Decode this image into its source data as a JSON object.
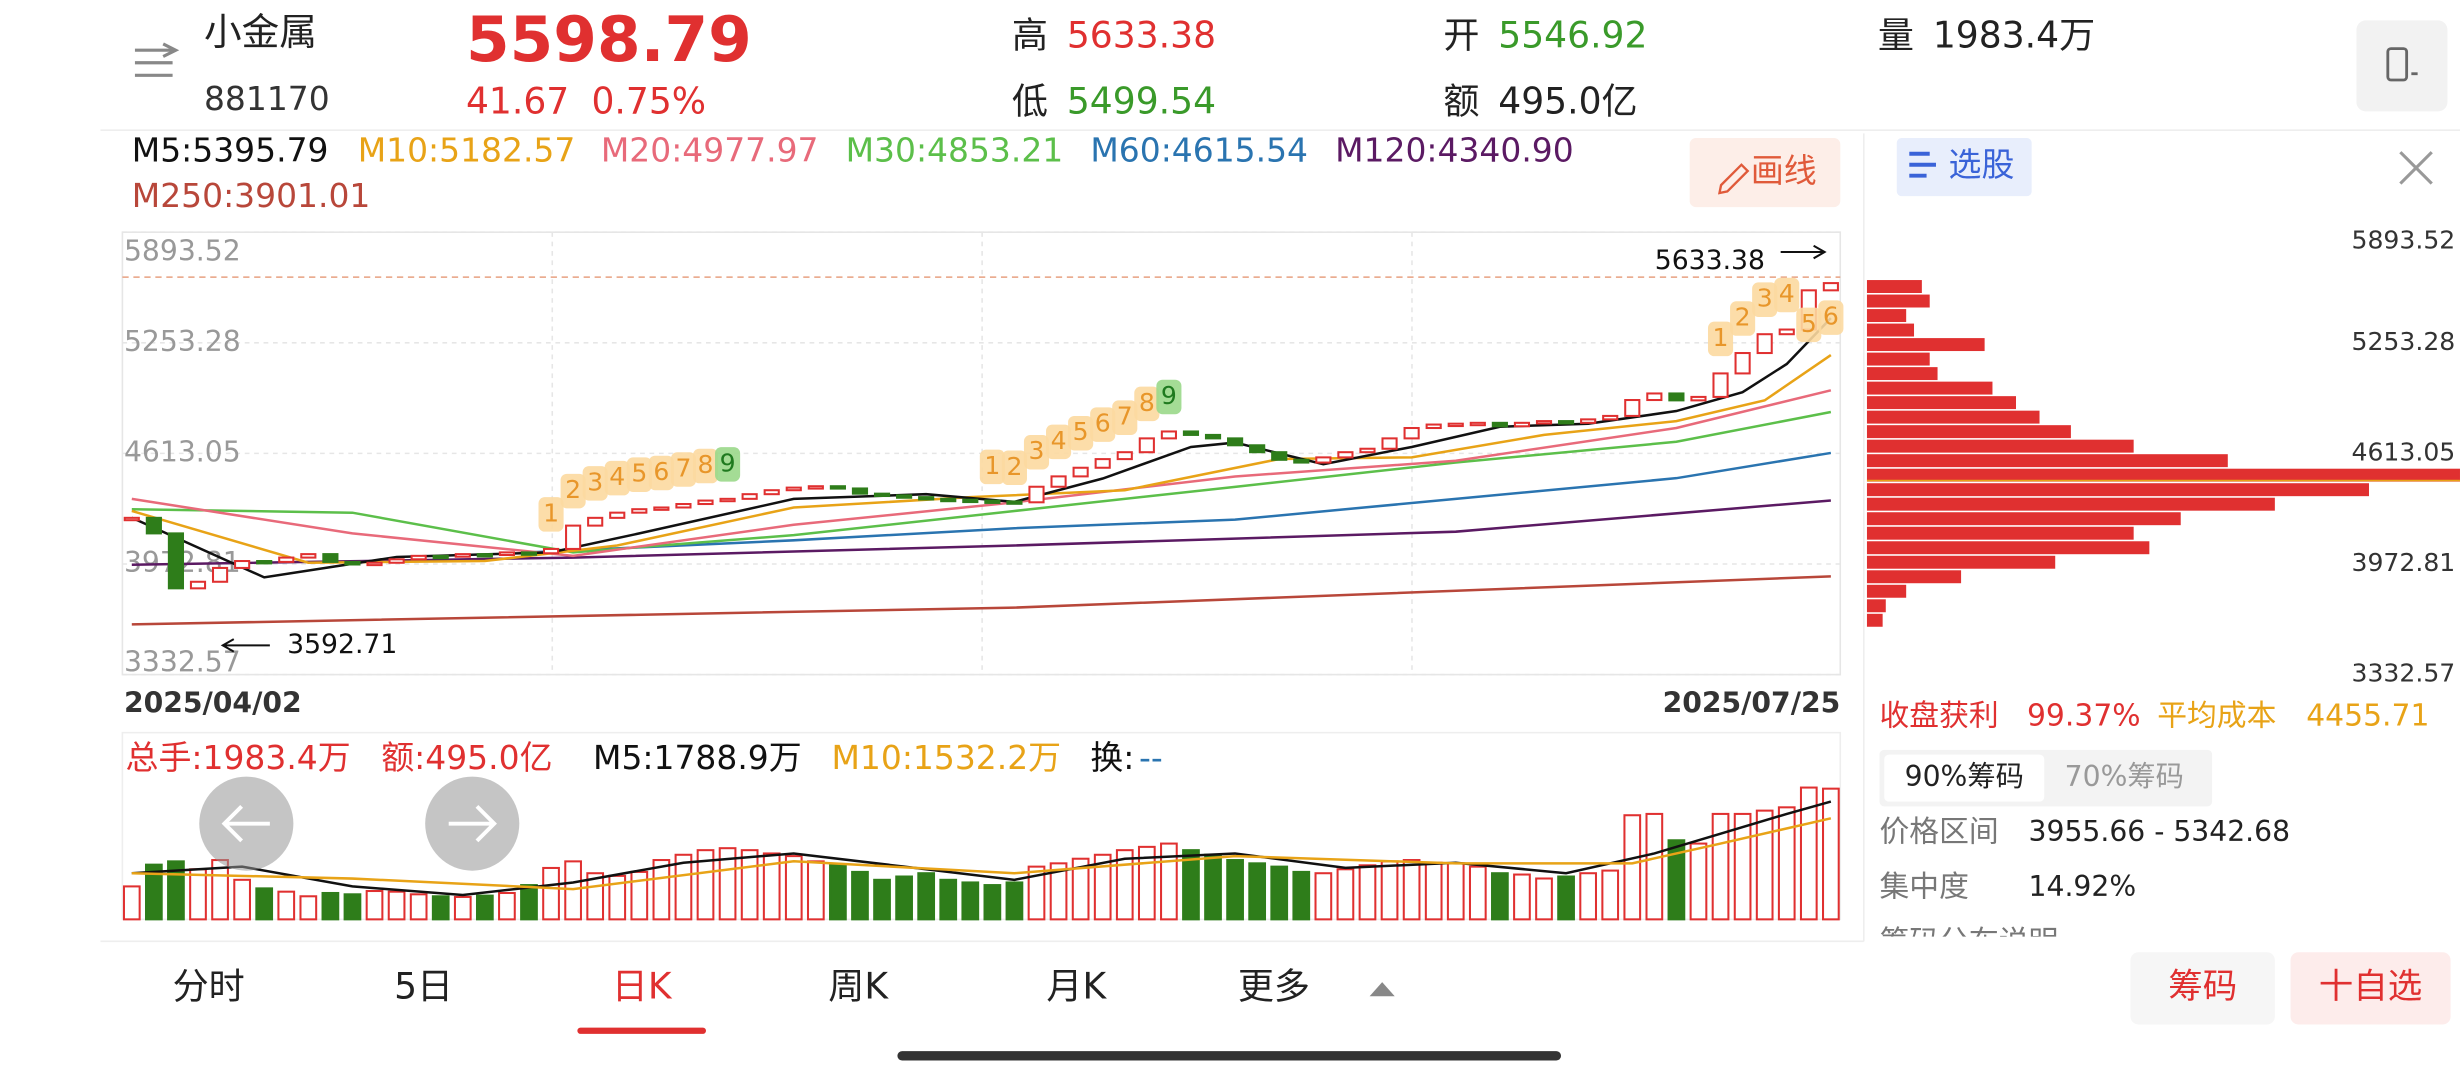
{
  "header": {
    "name": "小金属",
    "code": "881170",
    "price": 5598.79,
    "change": 41.67,
    "change_pct": "0.75%",
    "high_label": "高",
    "high": 5633.38,
    "low_label": "低",
    "low": 5499.54,
    "open_label": "开",
    "open": 5546.92,
    "amount_label": "额",
    "amount": "495.0亿",
    "volume_label": "量",
    "volume": "1983.4万"
  },
  "toolbar": {
    "draw_button": "画线",
    "stock_pick": "选股"
  },
  "chart_data": {
    "type": "candlestick",
    "ylim": [
      3332.57,
      5893.52
    ],
    "yticks": [
      5893.52,
      5253.28,
      4613.05,
      3972.81,
      3332.57
    ],
    "date_labels": [
      "2025/04/02",
      "2025/07/25"
    ],
    "high_mark": 5633.38,
    "low_mark": 3592.71,
    "close": [
      4240,
      4150,
      3832,
      3870,
      3950,
      3990,
      3985,
      4010,
      4030,
      3985,
      3970,
      3980,
      4000,
      4020,
      4015,
      4030,
      4025,
      4040,
      4035,
      4060,
      4195,
      4240,
      4270,
      4290,
      4300,
      4320,
      4340,
      4350,
      4377,
      4400,
      4415,
      4423,
      4410,
      4380,
      4370,
      4360,
      4350,
      4345,
      4340,
      4335,
      4330,
      4420,
      4480,
      4530,
      4580,
      4620,
      4700,
      4740,
      4720,
      4700,
      4660,
      4620,
      4576,
      4560,
      4590,
      4620,
      4640,
      4700,
      4760,
      4780,
      4785,
      4790,
      4770,
      4790,
      4800,
      4790,
      4810,
      4830,
      4922,
      4960,
      4920,
      4940,
      5076,
      5194,
      5303,
      5330,
      5557,
      5598.79
    ],
    "series": [
      {
        "name": "M5:5395.79",
        "color": "#111111",
        "x": [
          0,
          6,
          12,
          19,
          23,
          30,
          36,
          40,
          44,
          48,
          50,
          54,
          58,
          62,
          66,
          70,
          73,
          75,
          77
        ],
        "values": [
          4241,
          3896,
          4014,
          4040,
          4150,
          4350,
          4377,
          4332,
          4468,
          4650,
          4676,
          4550,
          4650,
          4767,
          4785,
          4858,
          4967,
          5131,
          5395.79
        ]
      },
      {
        "name": "M10:5182.57",
        "color": "#e8a317",
        "x": [
          0,
          8,
          16,
          22,
          30,
          38,
          45,
          52,
          58,
          64,
          70,
          74,
          77
        ],
        "values": [
          4280,
          3980,
          3990,
          4080,
          4300,
          4360,
          4400,
          4580,
          4590,
          4720,
          4800,
          4920,
          5182.57
        ]
      },
      {
        "name": "M20:4977.97",
        "color": "#e86a7a",
        "x": [
          0,
          10,
          20,
          30,
          40,
          50,
          60,
          70,
          77
        ],
        "values": [
          4350,
          4150,
          4020,
          4200,
          4330,
          4480,
          4570,
          4760,
          4977.97
        ]
      },
      {
        "name": "M30:4853.21",
        "color": "#5cbf4a",
        "x": [
          0,
          10,
          20,
          30,
          40,
          50,
          60,
          70,
          77
        ],
        "values": [
          4290,
          4270,
          4040,
          4140,
          4280,
          4420,
          4560,
          4680,
          4853.21
        ]
      },
      {
        "name": "M60:4615.54",
        "color": "#2a74b0",
        "x": [
          18,
          30,
          40,
          50,
          60,
          70,
          77
        ],
        "values": [
          4040,
          4110,
          4180,
          4230,
          4350,
          4470,
          4615.54
        ]
      },
      {
        "name": "M120:4340.90",
        "color": "#5b1a63",
        "x": [
          0,
          20,
          40,
          60,
          77
        ],
        "values": [
          3968,
          4010,
          4080,
          4160,
          4340.9
        ]
      },
      {
        "name": "M250:3901.01",
        "color": "#b8473a",
        "x": [
          0,
          40,
          77
        ],
        "values": [
          3623,
          3720,
          3901.01
        ]
      }
    ],
    "td_above": {
      "x": [
        19,
        20,
        21,
        22,
        23,
        24,
        25,
        26,
        27,
        39,
        40,
        41,
        42,
        43,
        44,
        45,
        46,
        47,
        72,
        73,
        74,
        75
      ],
      "labels": [
        1,
        2,
        3,
        4,
        5,
        6,
        7,
        8,
        9,
        1,
        2,
        3,
        4,
        5,
        6,
        7,
        8,
        9,
        1,
        2,
        3,
        4
      ]
    },
    "td_below": {
      "x": [
        76,
        77
      ],
      "labels": [
        5,
        6
      ]
    },
    "volume": [
      500,
      830,
      880,
      760,
      900,
      600,
      470,
      420,
      350,
      400,
      380,
      430,
      420,
      380,
      350,
      340,
      360,
      400,
      520,
      780,
      880,
      700,
      660,
      720,
      900,
      980,
      1050,
      1080,
      1050,
      1000,
      960,
      880,
      820,
      720,
      600,
      650,
      700,
      600,
      560,
      520,
      560,
      800,
      850,
      920,
      980,
      1050,
      1100,
      1150,
      1050,
      980,
      900,
      850,
      800,
      720,
      700,
      760,
      820,
      880,
      900,
      860,
      850,
      800,
      700,
      680,
      620,
      650,
      700,
      740,
      1580,
      1600,
      1200,
      1150,
      1600,
      1600,
      1650,
      1700,
      2000,
      1983.4
    ],
    "volume_ma": [
      {
        "color": "#111111",
        "x": [
          0,
          5,
          10,
          15,
          20,
          25,
          30,
          35,
          40,
          45,
          50,
          55,
          60,
          65,
          69,
          72,
          75,
          77
        ],
        "values": [
          700,
          800,
          500,
          370,
          560,
          860,
          1000,
          800,
          600,
          920,
          1000,
          780,
          860,
          700,
          1000,
          1300,
          1600,
          1788.9
        ]
      },
      {
        "color": "#e8a317",
        "x": [
          0,
          10,
          20,
          30,
          40,
          50,
          60,
          68,
          72,
          77
        ],
        "values": [
          700,
          620,
          460,
          880,
          700,
          960,
          850,
          850,
          1150,
          1532.2
        ]
      }
    ],
    "volume_legend": [
      {
        "text": "总手:1983.4万",
        "color": "#e03030"
      },
      {
        "text": "额:495.0亿",
        "color": "#e03030"
      },
      {
        "text": "M5:1788.9万",
        "color": "#111111"
      },
      {
        "text": "M10:1532.2万",
        "color": "#e8a317"
      },
      {
        "text": "换:",
        "color": "#111111"
      },
      {
        "text": "--",
        "color": "#2a74b0"
      }
    ]
  },
  "chip_panel": {
    "profit_label": "收盘获利",
    "profit": "99.37%",
    "cost_label": "平均成本",
    "avg_cost": 4455.71,
    "tab_90": "90%筹码",
    "tab_70": "70%筹码",
    "range_label": "价格区间",
    "range": "3955.66 - 5342.68",
    "concentration_label": "集中度",
    "concentration": "14.92%",
    "help": "筹码分布说明",
    "bins": [
      3605,
      3689,
      3773,
      3857,
      3941,
      4025,
      4109,
      4193,
      4277,
      4361,
      4445,
      4529,
      4613,
      4697,
      4781,
      4865,
      4949,
      5033,
      5117,
      5201,
      5285,
      5369,
      5453,
      5537,
      5621
    ],
    "values": [
      10,
      12,
      25,
      60,
      120,
      180,
      170,
      200,
      260,
      320,
      378,
      230,
      170,
      130,
      110,
      95,
      80,
      45,
      40,
      75,
      30,
      25,
      40,
      35
    ]
  },
  "tabs": [
    "分时",
    "5日",
    "日K",
    "周K",
    "月K",
    "更多"
  ],
  "buttons": [
    "筹码",
    "十自选"
  ]
}
